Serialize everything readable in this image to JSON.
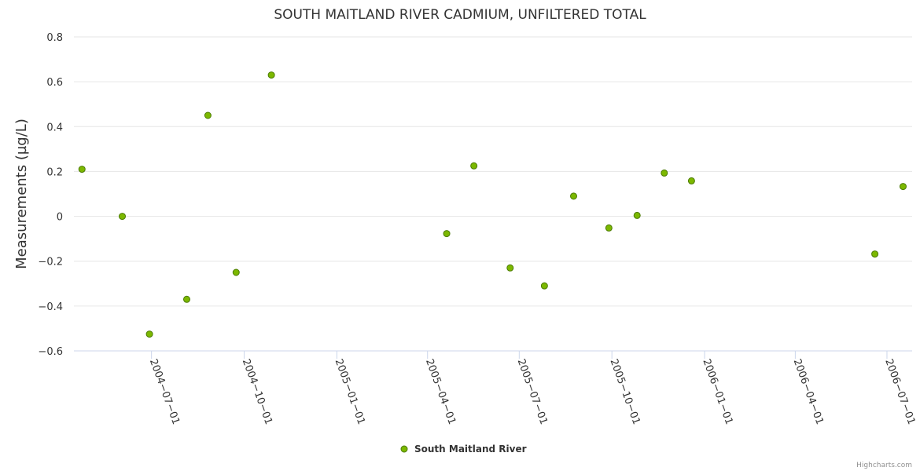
{
  "chart_data": {
    "type": "scatter",
    "title": "SOUTH MAITLAND RIVER CADMIUM, UNFILTERED TOTAL",
    "xlabel": "",
    "ylabel": "Measurements (µg/L)",
    "ylim": [
      -0.6,
      0.8
    ],
    "yticks": [
      0.8,
      0.6,
      0.4,
      0.2,
      0,
      -0.2,
      -0.4,
      -0.6
    ],
    "ytick_labels": [
      "0.8",
      "0.6",
      "0.4",
      "0.2",
      "0",
      "−0.2",
      "−0.4",
      "−0.6"
    ],
    "xlim": [
      "2004-04-15",
      "2006-07-26"
    ],
    "xticks": [
      "2004-07-01",
      "2004-10-01",
      "2005-01-01",
      "2005-04-01",
      "2005-07-01",
      "2005-10-01",
      "2006-01-01",
      "2006-04-01",
      "2006-07-01"
    ],
    "xtick_labels": [
      "2004−07−01",
      "2004−10−01",
      "2005−01−01",
      "2005−04−01",
      "2005−07−01",
      "2005−10−01",
      "2006−01−01",
      "2006−04−01",
      "2006−07−01"
    ],
    "grid": true,
    "legend_position": "bottom-center",
    "series": [
      {
        "name": "South Maitland River",
        "color": "#7cb800",
        "border_color": "#4a7a00",
        "points": [
          [
            "2004-04-23",
            0.21
          ],
          [
            "2004-06-02",
            0.0
          ],
          [
            "2004-06-29",
            -0.525
          ],
          [
            "2004-08-05",
            -0.37
          ],
          [
            "2004-08-26",
            0.45
          ],
          [
            "2004-09-23",
            -0.25
          ],
          [
            "2004-10-28",
            0.63
          ],
          [
            "2005-04-20",
            -0.077
          ],
          [
            "2005-05-17",
            0.225
          ],
          [
            "2005-06-22",
            -0.23
          ],
          [
            "2005-07-26",
            -0.31
          ],
          [
            "2005-08-24",
            0.09
          ],
          [
            "2005-09-28",
            -0.052
          ],
          [
            "2005-10-26",
            0.004
          ],
          [
            "2005-11-22",
            0.193
          ],
          [
            "2005-12-19",
            0.158
          ],
          [
            "2006-06-19",
            -0.168
          ],
          [
            "2006-07-17",
            0.133
          ]
        ]
      }
    ],
    "credit": "Highcharts.com"
  }
}
